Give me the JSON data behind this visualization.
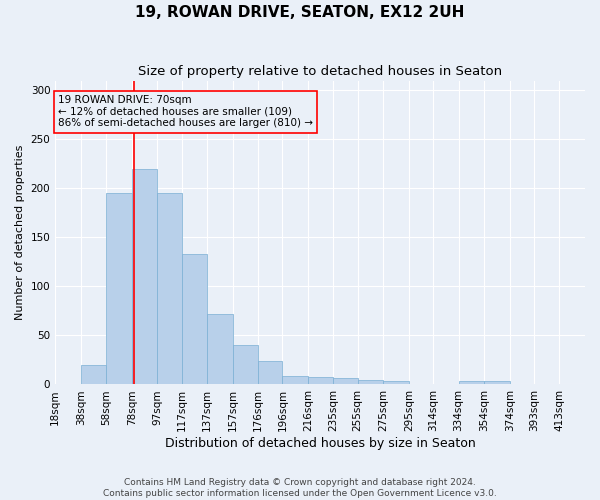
{
  "title": "19, ROWAN DRIVE, SEATON, EX12 2UH",
  "subtitle": "Size of property relative to detached houses in Seaton",
  "xlabel": "Distribution of detached houses by size in Seaton",
  "ylabel": "Number of detached properties",
  "footer_line1": "Contains HM Land Registry data © Crown copyright and database right 2024.",
  "footer_line2": "Contains public sector information licensed under the Open Government Licence v3.0.",
  "annotation_line1": "19 ROWAN DRIVE: 70sqm",
  "annotation_line2": "← 12% of detached houses are smaller (109)",
  "annotation_line3": "86% of semi-detached houses are larger (810) →",
  "bar_color": "#b8d0ea",
  "bar_edge_color": "#7aafd4",
  "red_line_x": 70,
  "categories": [
    "18sqm",
    "38sqm",
    "58sqm",
    "78sqm",
    "97sqm",
    "117sqm",
    "137sqm",
    "157sqm",
    "176sqm",
    "196sqm",
    "216sqm",
    "235sqm",
    "255sqm",
    "275sqm",
    "295sqm",
    "314sqm",
    "334sqm",
    "354sqm",
    "374sqm",
    "393sqm",
    "413sqm"
  ],
  "bin_edges": [
    8,
    28,
    48,
    68,
    88,
    107,
    127,
    147,
    167,
    186,
    206,
    226,
    245,
    265,
    285,
    304,
    324,
    344,
    364,
    383,
    403,
    423
  ],
  "values": [
    0,
    20,
    195,
    220,
    195,
    133,
    72,
    40,
    24,
    9,
    8,
    7,
    5,
    4,
    0,
    0,
    4,
    4,
    0,
    0,
    0
  ],
  "ylim": [
    0,
    310
  ],
  "yticks": [
    0,
    50,
    100,
    150,
    200,
    250,
    300
  ],
  "background_color": "#eaf0f8",
  "grid_color": "#ffffff",
  "title_fontsize": 11,
  "subtitle_fontsize": 9.5,
  "xlabel_fontsize": 9,
  "ylabel_fontsize": 8,
  "tick_fontsize": 7.5,
  "annotation_fontsize": 7.5,
  "footer_fontsize": 6.5
}
